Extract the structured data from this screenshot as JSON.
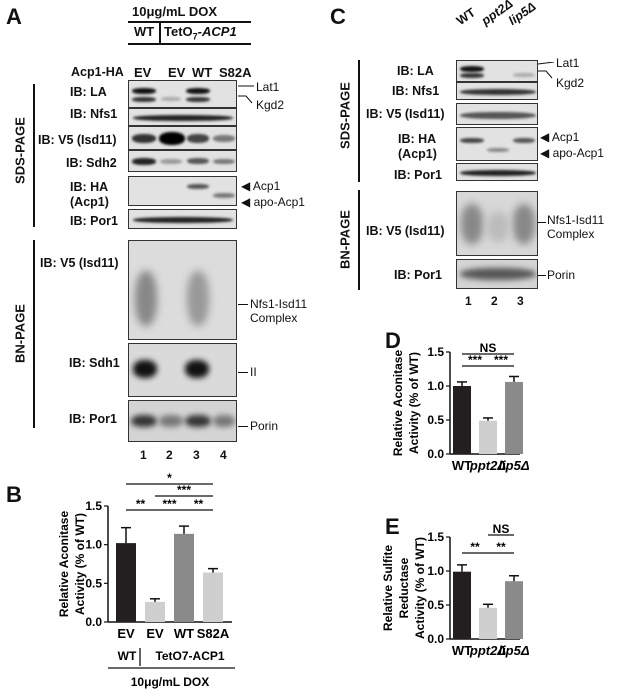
{
  "panels": {
    "A": "A",
    "B": "B",
    "C": "C",
    "D": "D",
    "E": "E"
  },
  "A": {
    "dox": "10μg/mL DOX",
    "wt": "WT",
    "teto": "TetO",
    "teto_sub": "7",
    "teto_gene": "-ACP1",
    "construct_label": "Acp1-HA",
    "lanes_top": [
      "EV",
      "EV",
      "WT",
      "S82A"
    ],
    "sds_page": "SDS-PAGE",
    "bn_page": "BN-PAGE",
    "blots": {
      "la": "IB: LA",
      "nfs1": "IB: Nfs1",
      "v5": "IB: V5 (Isd11)",
      "sdh2": "IB: Sdh2",
      "ha1": "IB: HA",
      "ha2": "(Acp1)",
      "por1": "IB: Por1",
      "bn_v5": "IB: V5 (Isd11)",
      "bn_sdh1": "IB: Sdh1",
      "bn_por1": "IB: Por1"
    },
    "right": {
      "lat1": "Lat1",
      "kgd2": "Kgd2",
      "acp1": "Acp1",
      "apo": "apo-Acp1",
      "nfs_isd": "Nfs1-Isd11",
      "complex": "Complex",
      "ii": "II",
      "porin": "Porin"
    },
    "lanes_num": [
      "1",
      "2",
      "3",
      "4"
    ]
  },
  "C": {
    "lanes_top": [
      "WT",
      "ppt2Δ",
      "lip5Δ"
    ],
    "sds_page": "SDS-PAGE",
    "bn_page": "BN-PAGE",
    "blots": {
      "la": "IB: LA",
      "nfs1": "IB: Nfs1",
      "v5": "IB: V5 (Isd11)",
      "ha1": "IB: HA",
      "ha2": "(Acp1)",
      "por1": "IB: Por1",
      "bn_v5": "IB: V5 (Isd11)",
      "bn_por1": "IB: Por1"
    },
    "right": {
      "lat1": "Lat1",
      "kgd2": "Kgd2",
      "acp1": "Acp1",
      "apo": "apo-Acp1",
      "nfs_isd": "Nfs1-Isd11",
      "complex": "Complex",
      "porin": "Porin"
    },
    "lanes_num": [
      "1",
      "2",
      "3"
    ]
  },
  "colors": {
    "black": "#231f20",
    "dgrey": "#8a8a8a",
    "lgrey": "#cfcfcf"
  },
  "chart_data": [
    {
      "panel": "B",
      "type": "bar",
      "ylabel": "Relative Aconitase Activity (% of WT)",
      "ylim": [
        0,
        1.5
      ],
      "yticks": [
        "0.0",
        "0.5",
        "1.0",
        "1.5"
      ],
      "categories": [
        "EV",
        "EV",
        "WT",
        "S82A"
      ],
      "values": [
        1.02,
        0.26,
        1.14,
        0.64
      ],
      "errors": [
        0.2,
        0.04,
        0.1,
        0.05
      ],
      "bar_colors": [
        "#231f20",
        "#cfcfcf",
        "#8a8a8a",
        "#cfcfcf"
      ],
      "significance": [
        "*",
        "***",
        "**",
        "***",
        "**"
      ],
      "group_labels": [
        "WT",
        "TetO7-ACP1"
      ],
      "condition": "10μg/mL DOX"
    },
    {
      "panel": "D",
      "type": "bar",
      "ylabel": "Relative Aconitase Activity (% of WT)",
      "ylim": [
        0,
        1.5
      ],
      "yticks": [
        "0.0",
        "0.5",
        "1.0",
        "1.5"
      ],
      "categories": [
        "WT",
        "ppt2Δ",
        "lip5Δ"
      ],
      "values": [
        1.0,
        0.49,
        1.06
      ],
      "errors": [
        0.06,
        0.04,
        0.08
      ],
      "bar_colors": [
        "#231f20",
        "#cfcfcf",
        "#8a8a8a"
      ],
      "significance": [
        "NS",
        "***",
        "***"
      ]
    },
    {
      "panel": "E",
      "type": "bar",
      "ylabel": "Relative Sulfite Reductase Activity (% of WT)",
      "ylim": [
        0,
        1.5
      ],
      "yticks": [
        "0.0",
        "0.5",
        "1.0",
        "1.5"
      ],
      "categories": [
        "WT",
        "ppt2Δ",
        "lip5Δ"
      ],
      "values": [
        0.99,
        0.46,
        0.85
      ],
      "errors": [
        0.1,
        0.05,
        0.08
      ],
      "bar_colors": [
        "#231f20",
        "#cfcfcf",
        "#8a8a8a"
      ],
      "significance": [
        "NS",
        "**",
        "**"
      ]
    }
  ]
}
